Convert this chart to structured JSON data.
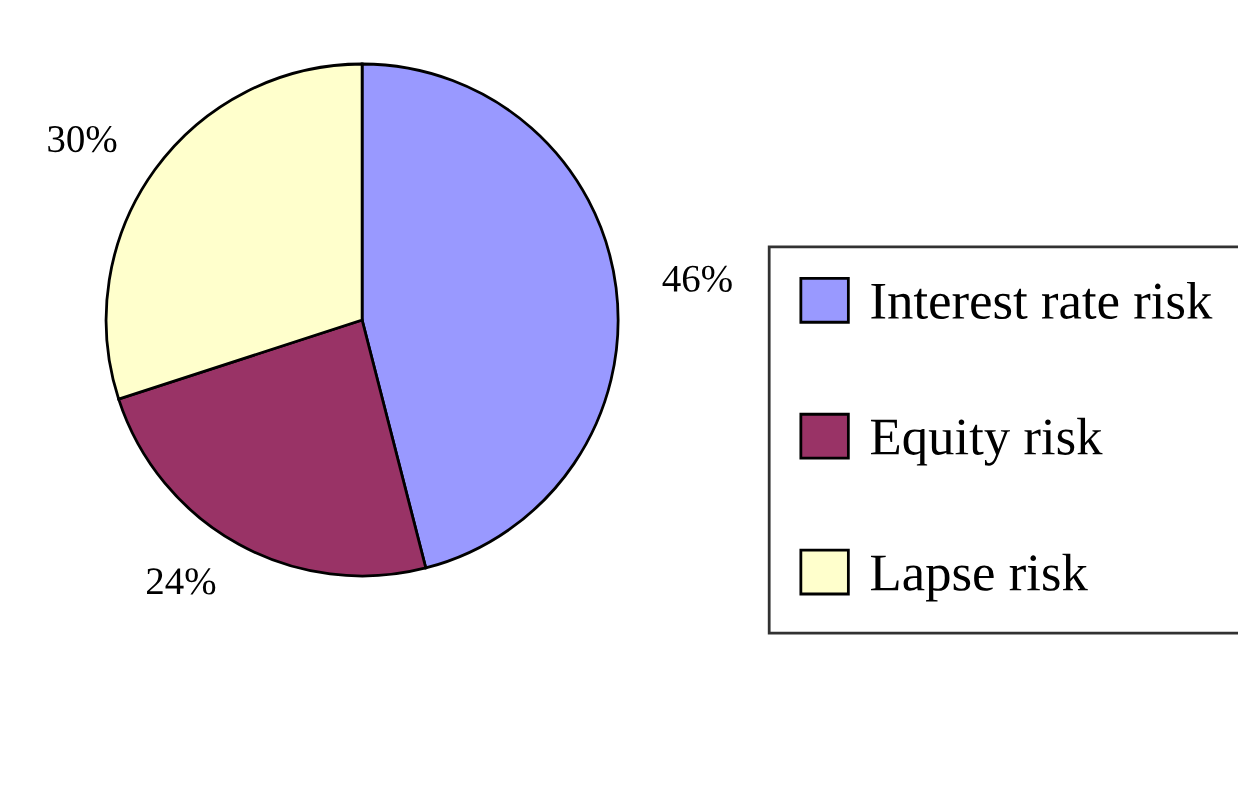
{
  "chart_data": {
    "type": "pie",
    "categories": [
      "Interest rate risk",
      "Equity risk",
      "Lapse risk"
    ],
    "values": [
      46,
      24,
      30
    ],
    "colors": [
      "#9999ff",
      "#993366",
      "#ffffcc"
    ],
    "value_labels": [
      "46%",
      "24%",
      "30%"
    ],
    "legend": "right"
  }
}
